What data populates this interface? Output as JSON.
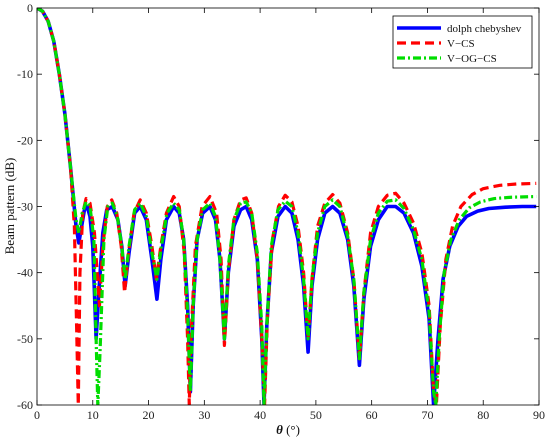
{
  "chart_data": {
    "type": "line",
    "xlabel_symbol": "θ",
    "xlabel_unit": " (°)",
    "ylabel": "Beam pattern (dB)",
    "xlim": [
      0,
      90
    ],
    "ylim": [
      -60,
      0
    ],
    "x_ticks": [
      0,
      10,
      20,
      30,
      40,
      50,
      60,
      70,
      80,
      90
    ],
    "y_ticks": [
      0,
      -10,
      -20,
      -30,
      -40,
      -50,
      -60
    ],
    "grid": false,
    "legend_position": "top-right",
    "series": [
      {
        "name": "dolph chebyshev",
        "color": "#0000ff",
        "style": "solid",
        "points": [
          [
            0,
            0
          ],
          [
            1,
            -0.5
          ],
          [
            2,
            -2
          ],
          [
            3,
            -5
          ],
          [
            4,
            -10
          ],
          [
            5,
            -16
          ],
          [
            6,
            -24
          ],
          [
            7,
            -33
          ],
          [
            7.5,
            -35.5
          ],
          [
            8,
            -33
          ],
          [
            8.5,
            -30.5
          ],
          [
            9,
            -30
          ],
          [
            9.5,
            -31.5
          ],
          [
            10,
            -36
          ],
          [
            10.6,
            -50
          ],
          [
            11,
            -44
          ],
          [
            11.8,
            -34
          ],
          [
            12.5,
            -30.5
          ],
          [
            13.5,
            -30
          ],
          [
            14.5,
            -32
          ],
          [
            15.2,
            -36
          ],
          [
            15.8,
            -42
          ],
          [
            16.5,
            -37
          ],
          [
            17.5,
            -31
          ],
          [
            18.5,
            -30
          ],
          [
            19.6,
            -32
          ],
          [
            20.6,
            -38
          ],
          [
            21.5,
            -44
          ],
          [
            22.2,
            -38
          ],
          [
            23.2,
            -32
          ],
          [
            24.5,
            -30
          ],
          [
            25.5,
            -31
          ],
          [
            26.3,
            -35
          ],
          [
            27,
            -45
          ],
          [
            27.5,
            -58
          ],
          [
            28,
            -45
          ],
          [
            28.7,
            -35
          ],
          [
            29.7,
            -31
          ],
          [
            31,
            -30
          ],
          [
            32,
            -32
          ],
          [
            32.8,
            -38
          ],
          [
            33.6,
            -50
          ],
          [
            34.3,
            -40
          ],
          [
            35.3,
            -33
          ],
          [
            36.5,
            -30.5
          ],
          [
            37.5,
            -30
          ],
          [
            38.5,
            -32
          ],
          [
            39.5,
            -38
          ],
          [
            40.3,
            -50
          ],
          [
            40.7,
            -60
          ],
          [
            41.2,
            -48
          ],
          [
            42,
            -37
          ],
          [
            43.2,
            -31.5
          ],
          [
            44.5,
            -30
          ],
          [
            45.7,
            -31
          ],
          [
            46.8,
            -35
          ],
          [
            47.8,
            -42
          ],
          [
            48.6,
            -52
          ],
          [
            49.3,
            -42
          ],
          [
            50.3,
            -35
          ],
          [
            51.6,
            -31
          ],
          [
            53,
            -30
          ],
          [
            54.3,
            -31
          ],
          [
            55.7,
            -35
          ],
          [
            56.8,
            -42
          ],
          [
            57.8,
            -54
          ],
          [
            58.6,
            -44
          ],
          [
            59.8,
            -36
          ],
          [
            61.2,
            -32
          ],
          [
            62.8,
            -30
          ],
          [
            64.3,
            -30
          ],
          [
            65.8,
            -31
          ],
          [
            67.5,
            -34
          ],
          [
            69,
            -39
          ],
          [
            70.3,
            -47
          ],
          [
            71.1,
            -60
          ],
          [
            71.9,
            -50
          ],
          [
            72.8,
            -41
          ],
          [
            74,
            -36
          ],
          [
            75.5,
            -33
          ],
          [
            77,
            -31.5
          ],
          [
            79,
            -30.7
          ],
          [
            81,
            -30.3
          ],
          [
            84,
            -30.1
          ],
          [
            87,
            -30
          ],
          [
            89.5,
            -30
          ]
        ]
      },
      {
        "name": "V−CS",
        "color": "#ff0000",
        "style": "dashed",
        "points": [
          [
            0,
            0
          ],
          [
            1,
            -0.5
          ],
          [
            2,
            -2
          ],
          [
            3,
            -5
          ],
          [
            4,
            -10
          ],
          [
            5,
            -16
          ],
          [
            6,
            -24
          ],
          [
            6.7,
            -33
          ],
          [
            7.1,
            -48
          ],
          [
            7.4,
            -60
          ],
          [
            7.7,
            -40
          ],
          [
            8.2,
            -31
          ],
          [
            8.8,
            -28.8
          ],
          [
            9.5,
            -29.5
          ],
          [
            10.3,
            -34
          ],
          [
            11.2,
            -45
          ],
          [
            11.8,
            -36
          ],
          [
            12.6,
            -30
          ],
          [
            13.4,
            -29
          ],
          [
            14.3,
            -31
          ],
          [
            15.1,
            -36
          ],
          [
            15.7,
            -43
          ],
          [
            16.4,
            -37
          ],
          [
            17.4,
            -31
          ],
          [
            18.5,
            -29
          ],
          [
            19.6,
            -31
          ],
          [
            20.6,
            -36
          ],
          [
            21.4,
            -41
          ],
          [
            22.2,
            -36
          ],
          [
            23.2,
            -31
          ],
          [
            24.5,
            -28.5
          ],
          [
            25.5,
            -30
          ],
          [
            26.4,
            -37
          ],
          [
            27,
            -50
          ],
          [
            27.3,
            -60
          ],
          [
            27.6,
            -50
          ],
          [
            28.4,
            -36
          ],
          [
            29.6,
            -30
          ],
          [
            31,
            -28.5
          ],
          [
            32.2,
            -31
          ],
          [
            33,
            -38
          ],
          [
            33.6,
            -51
          ],
          [
            34.3,
            -40
          ],
          [
            35.3,
            -32
          ],
          [
            36.5,
            -29
          ],
          [
            37.5,
            -28.7
          ],
          [
            38.5,
            -31
          ],
          [
            39.5,
            -38
          ],
          [
            40.3,
            -50
          ],
          [
            40.8,
            -60
          ],
          [
            41.3,
            -47
          ],
          [
            42.2,
            -35
          ],
          [
            43.3,
            -30
          ],
          [
            44.5,
            -28.3
          ],
          [
            45.7,
            -29.3
          ],
          [
            46.8,
            -33
          ],
          [
            47.8,
            -40
          ],
          [
            48.6,
            -50
          ],
          [
            49.3,
            -41
          ],
          [
            50.3,
            -33
          ],
          [
            51.6,
            -29.5
          ],
          [
            53,
            -28.2
          ],
          [
            54.3,
            -29.5
          ],
          [
            55.7,
            -34
          ],
          [
            56.8,
            -41
          ],
          [
            57.8,
            -53
          ],
          [
            58.6,
            -43
          ],
          [
            59.8,
            -34
          ],
          [
            61.2,
            -30
          ],
          [
            62.8,
            -28.3
          ],
          [
            64.3,
            -28
          ],
          [
            65.8,
            -29.5
          ],
          [
            67.5,
            -32.5
          ],
          [
            69,
            -37
          ],
          [
            70.3,
            -45
          ],
          [
            71.1,
            -58
          ],
          [
            71.6,
            -60
          ],
          [
            72.3,
            -48
          ],
          [
            73.3,
            -38
          ],
          [
            74.5,
            -33
          ],
          [
            76,
            -30
          ],
          [
            78,
            -28.2
          ],
          [
            80,
            -27.3
          ],
          [
            83,
            -26.8
          ],
          [
            86,
            -26.6
          ],
          [
            89.5,
            -26.5
          ]
        ]
      },
      {
        "name": "V−OG−CS",
        "color": "#00dd00",
        "style": "dashdot",
        "points": [
          [
            0,
            0
          ],
          [
            1,
            -0.5
          ],
          [
            2,
            -2
          ],
          [
            3,
            -5
          ],
          [
            4,
            -10
          ],
          [
            5,
            -16
          ],
          [
            6,
            -24
          ],
          [
            7,
            -32
          ],
          [
            7.5,
            -34
          ],
          [
            8.1,
            -31
          ],
          [
            8.8,
            -29.3
          ],
          [
            9.5,
            -30
          ],
          [
            10.2,
            -35
          ],
          [
            10.6,
            -50
          ],
          [
            10.9,
            -60
          ],
          [
            11.3,
            -52
          ],
          [
            12,
            -35
          ],
          [
            12.7,
            -30
          ],
          [
            13.5,
            -29.5
          ],
          [
            14.4,
            -31.5
          ],
          [
            15.2,
            -36
          ],
          [
            15.8,
            -41
          ],
          [
            16.5,
            -36
          ],
          [
            17.5,
            -30.5
          ],
          [
            18.5,
            -29.5
          ],
          [
            19.6,
            -31.5
          ],
          [
            20.6,
            -37
          ],
          [
            21.5,
            -41
          ],
          [
            22.3,
            -36
          ],
          [
            23.3,
            -31
          ],
          [
            24.5,
            -29.5
          ],
          [
            25.5,
            -30.5
          ],
          [
            26.3,
            -35
          ],
          [
            27,
            -46
          ],
          [
            27.5,
            -58
          ],
          [
            28,
            -45
          ],
          [
            28.7,
            -35
          ],
          [
            29.7,
            -30.5
          ],
          [
            31,
            -29.5
          ],
          [
            32,
            -31.5
          ],
          [
            32.8,
            -38
          ],
          [
            33.6,
            -50
          ],
          [
            34.3,
            -39
          ],
          [
            35.3,
            -32
          ],
          [
            36.5,
            -29.5
          ],
          [
            37.5,
            -29.3
          ],
          [
            38.5,
            -31
          ],
          [
            39.5,
            -37
          ],
          [
            40.3,
            -48
          ],
          [
            40.7,
            -60
          ],
          [
            41.2,
            -48
          ],
          [
            42,
            -36
          ],
          [
            43.2,
            -30.5
          ],
          [
            44.5,
            -29.2
          ],
          [
            45.7,
            -30
          ],
          [
            46.8,
            -34
          ],
          [
            47.8,
            -41
          ],
          [
            48.6,
            -50
          ],
          [
            49.3,
            -41
          ],
          [
            50.3,
            -34
          ],
          [
            51.6,
            -30
          ],
          [
            53,
            -29
          ],
          [
            54.3,
            -30
          ],
          [
            55.7,
            -34.5
          ],
          [
            56.8,
            -41
          ],
          [
            57.8,
            -53
          ],
          [
            58.6,
            -43
          ],
          [
            59.8,
            -35
          ],
          [
            61.2,
            -31
          ],
          [
            62.8,
            -29.2
          ],
          [
            64.3,
            -29
          ],
          [
            65.8,
            -30.3
          ],
          [
            67.5,
            -33.5
          ],
          [
            69,
            -38
          ],
          [
            70.3,
            -46
          ],
          [
            71.1,
            -58
          ],
          [
            71.5,
            -60
          ],
          [
            72.1,
            -50
          ],
          [
            73,
            -40
          ],
          [
            74.2,
            -35
          ],
          [
            75.7,
            -32
          ],
          [
            77.5,
            -30.2
          ],
          [
            79.5,
            -29.3
          ],
          [
            82,
            -28.8
          ],
          [
            85,
            -28.6
          ],
          [
            89.5,
            -28.5
          ]
        ]
      }
    ]
  }
}
